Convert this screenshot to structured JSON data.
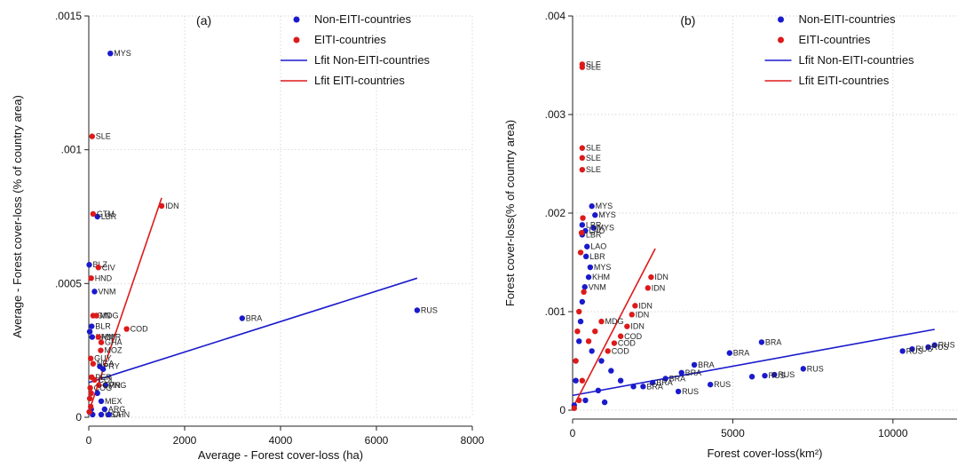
{
  "chart_data": [
    {
      "type": "scatter",
      "panel_label": "(a)",
      "xlabel": "Average  - Forest cover-loss (ha)",
      "ylabel": "Average  - Forest cover-loss (% of country area)",
      "xlim": [
        0,
        8000
      ],
      "ylim": [
        0,
        0.0015
      ],
      "x_ticks": [
        0,
        2000,
        4000,
        6000,
        8000
      ],
      "x_tick_labels": [
        "0",
        "2000",
        "4000",
        "6000",
        "8000"
      ],
      "y_ticks": [
        0,
        0.0005,
        0.001,
        0.0015
      ],
      "y_tick_labels": [
        "0",
        ".0005",
        ".001",
        ".0015"
      ],
      "grid": true,
      "legend_position": "top-right",
      "legend": [
        "Non-EITI-countries",
        "EITI-countries",
        "Lfit Non-EITI-countries",
        "Lfit EITI-countries"
      ],
      "colors": {
        "non_eiti": "#1a1acc",
        "eiti": "#dd1a1a"
      },
      "series": [
        {
          "name": "Non-EITI-countries",
          "points": [
            {
              "x": 450,
              "y": 0.00136,
              "label": "MYS"
            },
            {
              "x": 6850,
              "y": 0.0004,
              "label": "RUS"
            },
            {
              "x": 3200,
              "y": 0.00037,
              "label": "BRA"
            },
            {
              "x": 180,
              "y": 0.00075,
              "label": "LBR"
            },
            {
              "x": 10,
              "y": 0.00057,
              "label": "BLZ"
            },
            {
              "x": 120,
              "y": 0.00047,
              "label": "VNM"
            },
            {
              "x": 60,
              "y": 0.00034,
              "label": "BLR"
            },
            {
              "x": 20,
              "y": 0.00032,
              "label": ""
            },
            {
              "x": 70,
              "y": 0.0003,
              "label": "KHM"
            },
            {
              "x": 230,
              "y": 0.00019,
              "label": "PRY"
            },
            {
              "x": 300,
              "y": 0.00018,
              "label": ""
            },
            {
              "x": 350,
              "y": 0.00012,
              "label": "PNG"
            },
            {
              "x": 180,
              "y": 9e-05,
              "label": ""
            },
            {
              "x": 260,
              "y": 6e-05,
              "label": "MEX"
            },
            {
              "x": 330,
              "y": 3e-05,
              "label": "ARG"
            },
            {
              "x": 260,
              "y": 1e-05,
              "label": "USA"
            },
            {
              "x": 420,
              "y": 1e-05,
              "label": "CHN"
            },
            {
              "x": 50,
              "y": 3e-05,
              "label": ""
            },
            {
              "x": 80,
              "y": 1e-05,
              "label": ""
            }
          ]
        },
        {
          "name": "EITI-countries",
          "points": [
            {
              "x": 70,
              "y": 0.00105,
              "label": "SLE"
            },
            {
              "x": 1520,
              "y": 0.00079,
              "label": "IDN"
            },
            {
              "x": 90,
              "y": 0.00076,
              "label": "GTM"
            },
            {
              "x": 200,
              "y": 0.00056,
              "label": "CIV"
            },
            {
              "x": 50,
              "y": 0.00052,
              "label": "HND"
            },
            {
              "x": 90,
              "y": 0.00038,
              "label": "GIN"
            },
            {
              "x": 160,
              "y": 0.00038,
              "label": "MDG"
            },
            {
              "x": 790,
              "y": 0.00033,
              "label": "COD"
            },
            {
              "x": 200,
              "y": 0.0003,
              "label": "MMR"
            },
            {
              "x": 260,
              "y": 0.00028,
              "label": "GHA"
            },
            {
              "x": 250,
              "y": 0.00025,
              "label": "MOZ"
            },
            {
              "x": 40,
              "y": 0.00022,
              "label": "GUY"
            },
            {
              "x": 90,
              "y": 0.0002,
              "label": "NGA"
            },
            {
              "x": 60,
              "y": 0.00015,
              "label": "PER"
            },
            {
              "x": 120,
              "y": 0.00014,
              "label": "COL"
            },
            {
              "x": 210,
              "y": 0.00012,
              "label": "CMR"
            },
            {
              "x": 30,
              "y": 0.00011,
              "label": "COG"
            },
            {
              "x": 50,
              "y": 9e-05,
              "label": ""
            },
            {
              "x": 20,
              "y": 7e-05,
              "label": ""
            },
            {
              "x": 40,
              "y": 4e-05,
              "label": ""
            },
            {
              "x": 10,
              "y": 2e-05,
              "label": ""
            }
          ]
        }
      ],
      "fit_lines": [
        {
          "name": "Lfit Non-EITI-countries",
          "x": [
            0,
            6850
          ],
          "y": [
            0.00013,
            0.00052
          ]
        },
        {
          "name": "Lfit EITI-countries",
          "x": [
            0,
            1520
          ],
          "y": [
            2e-05,
            0.00082
          ]
        }
      ]
    },
    {
      "type": "scatter",
      "panel_label": "(b)",
      "xlabel": "Forest cover-loss(km²)",
      "ylabel": "Forest cover-loss(% of country area)",
      "xlim": [
        0,
        12000
      ],
      "ylim": [
        0,
        0.004
      ],
      "x_ticks": [
        0,
        5000,
        10000
      ],
      "x_tick_labels": [
        "0",
        "5000",
        "10000"
      ],
      "y_ticks": [
        0,
        0.001,
        0.002,
        0.003,
        0.004
      ],
      "y_tick_labels": [
        "0",
        ".001",
        ".002",
        ".003",
        ".004"
      ],
      "grid": true,
      "legend_position": "top-right",
      "legend": [
        "Non-EITI-countries",
        "EITI-countries",
        "Lfit Non-EITI-countries",
        "Lfit EITI-countries"
      ],
      "colors": {
        "non_eiti": "#1a1acc",
        "eiti": "#dd1a1a"
      },
      "series": [
        {
          "name": "Non-EITI-countries",
          "points": [
            {
              "x": 11300,
              "y": 0.00066,
              "label": "RUS"
            },
            {
              "x": 11100,
              "y": 0.00064,
              "label": "RUS"
            },
            {
              "x": 10600,
              "y": 0.00062,
              "label": "RUS"
            },
            {
              "x": 10300,
              "y": 0.0006,
              "label": "RUS"
            },
            {
              "x": 7200,
              "y": 0.00042,
              "label": "RUS"
            },
            {
              "x": 6300,
              "y": 0.00036,
              "label": "RUS"
            },
            {
              "x": 6000,
              "y": 0.00035,
              "label": "RUS"
            },
            {
              "x": 5600,
              "y": 0.00034,
              "label": ""
            },
            {
              "x": 4300,
              "y": 0.00026,
              "label": "RUS"
            },
            {
              "x": 3300,
              "y": 0.00019,
              "label": "RUS"
            },
            {
              "x": 5900,
              "y": 0.00069,
              "label": "BRA"
            },
            {
              "x": 4900,
              "y": 0.00058,
              "label": "BRA"
            },
            {
              "x": 3800,
              "y": 0.00046,
              "label": "BRA"
            },
            {
              "x": 3400,
              "y": 0.00038,
              "label": "BRA"
            },
            {
              "x": 2900,
              "y": 0.00032,
              "label": "BRA"
            },
            {
              "x": 2500,
              "y": 0.00028,
              "label": "BRA"
            },
            {
              "x": 2200,
              "y": 0.00024,
              "label": "BRA"
            },
            {
              "x": 1900,
              "y": 0.00024,
              "label": ""
            },
            {
              "x": 600,
              "y": 0.00207,
              "label": "MYS"
            },
            {
              "x": 700,
              "y": 0.00198,
              "label": "MYS"
            },
            {
              "x": 650,
              "y": 0.00185,
              "label": "MYS"
            },
            {
              "x": 300,
              "y": 0.00188,
              "label": "LBR"
            },
            {
              "x": 400,
              "y": 0.00182,
              "label": "LAO"
            },
            {
              "x": 300,
              "y": 0.00178,
              "label": "LBR"
            },
            {
              "x": 450,
              "y": 0.00166,
              "label": "LAO"
            },
            {
              "x": 420,
              "y": 0.00156,
              "label": "LBR"
            },
            {
              "x": 550,
              "y": 0.00145,
              "label": "MYS"
            },
            {
              "x": 500,
              "y": 0.00135,
              "label": "KHM"
            },
            {
              "x": 380,
              "y": 0.00125,
              "label": "VNM"
            },
            {
              "x": 300,
              "y": 0.0011,
              "label": ""
            },
            {
              "x": 250,
              "y": 0.0009,
              "label": ""
            },
            {
              "x": 200,
              "y": 0.0007,
              "label": ""
            },
            {
              "x": 600,
              "y": 0.0006,
              "label": ""
            },
            {
              "x": 900,
              "y": 0.0005,
              "label": ""
            },
            {
              "x": 1200,
              "y": 0.0004,
              "label": ""
            },
            {
              "x": 1500,
              "y": 0.0003,
              "label": ""
            },
            {
              "x": 800,
              "y": 0.0002,
              "label": ""
            },
            {
              "x": 400,
              "y": 0.0001,
              "label": ""
            },
            {
              "x": 1000,
              "y": 8e-05,
              "label": ""
            },
            {
              "x": 100,
              "y": 0.0003,
              "label": ""
            },
            {
              "x": 50,
              "y": 5e-05,
              "label": ""
            }
          ]
        },
        {
          "name": "EITI-countries",
          "points": [
            {
              "x": 300,
              "y": 0.00351,
              "label": "SLE"
            },
            {
              "x": 300,
              "y": 0.00348,
              "label": "SLE"
            },
            {
              "x": 300,
              "y": 0.00266,
              "label": "SLE"
            },
            {
              "x": 300,
              "y": 0.00256,
              "label": "SLE"
            },
            {
              "x": 300,
              "y": 0.00244,
              "label": "SLE"
            },
            {
              "x": 320,
              "y": 0.00195,
              "label": ""
            },
            {
              "x": 280,
              "y": 0.0018,
              "label": ""
            },
            {
              "x": 250,
              "y": 0.0016,
              "label": ""
            },
            {
              "x": 2450,
              "y": 0.00135,
              "label": "IDN"
            },
            {
              "x": 2350,
              "y": 0.00124,
              "label": "IDN"
            },
            {
              "x": 1950,
              "y": 0.00106,
              "label": "IDN"
            },
            {
              "x": 1850,
              "y": 0.00097,
              "label": "IDN"
            },
            {
              "x": 1700,
              "y": 0.00085,
              "label": "IDN"
            },
            {
              "x": 1500,
              "y": 0.00075,
              "label": "COD"
            },
            {
              "x": 1300,
              "y": 0.00068,
              "label": "COD"
            },
            {
              "x": 1100,
              "y": 0.0006,
              "label": "COD"
            },
            {
              "x": 900,
              "y": 0.0009,
              "label": "MDG"
            },
            {
              "x": 700,
              "y": 0.0008,
              "label": ""
            },
            {
              "x": 500,
              "y": 0.0007,
              "label": ""
            },
            {
              "x": 350,
              "y": 0.0012,
              "label": ""
            },
            {
              "x": 200,
              "y": 0.001,
              "label": ""
            },
            {
              "x": 150,
              "y": 0.0008,
              "label": ""
            },
            {
              "x": 100,
              "y": 0.0005,
              "label": ""
            },
            {
              "x": 300,
              "y": 0.0003,
              "label": ""
            },
            {
              "x": 200,
              "y": 0.0001,
              "label": ""
            },
            {
              "x": 50,
              "y": 2e-05,
              "label": ""
            }
          ]
        }
      ],
      "fit_lines": [
        {
          "name": "Lfit Non-EITI-countries",
          "x": [
            0,
            11300
          ],
          "y": [
            0.00015,
            0.00082
          ]
        },
        {
          "name": "Lfit EITI-countries",
          "x": [
            0,
            2580
          ],
          "y": [
            2e-05,
            0.00164
          ]
        }
      ]
    }
  ]
}
